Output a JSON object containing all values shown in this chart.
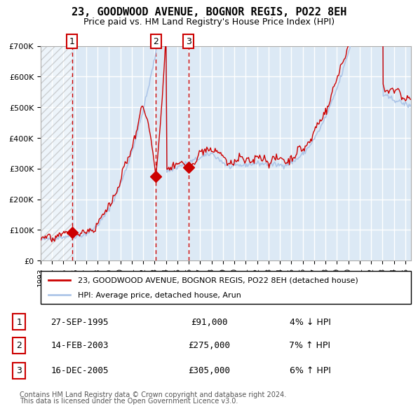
{
  "title": "23, GOODWOOD AVENUE, BOGNOR REGIS, PO22 8EH",
  "subtitle": "Price paid vs. HM Land Registry's House Price Index (HPI)",
  "legend_line1": "23, GOODWOOD AVENUE, BOGNOR REGIS, PO22 8EH (detached house)",
  "legend_line2": "HPI: Average price, detached house, Arun",
  "footer1": "Contains HM Land Registry data © Crown copyright and database right 2024.",
  "footer2": "This data is licensed under the Open Government Licence v3.0.",
  "transactions": [
    {
      "num": 1,
      "date": "27-SEP-1995",
      "price": 91000,
      "pct": "4%",
      "dir": "↓",
      "year": 1995.74
    },
    {
      "num": 2,
      "date": "14-FEB-2003",
      "price": 275000,
      "pct": "7%",
      "dir": "↑",
      "year": 2003.12
    },
    {
      "num": 3,
      "date": "16-DEC-2005",
      "price": 305000,
      "pct": "6%",
      "dir": "↑",
      "year": 2005.96
    }
  ],
  "hpi_color": "#aec6e8",
  "price_color": "#cc0000",
  "marker_color": "#cc0000",
  "vline_color": "#cc0000",
  "hatch_color": "#dddddd",
  "bg_color": "#dce9f5",
  "plot_bg": "#eef4fb",
  "grid_color": "#ffffff",
  "ylim": [
    0,
    700000
  ],
  "xlim_start": 1993.0,
  "xlim_end": 2025.5
}
